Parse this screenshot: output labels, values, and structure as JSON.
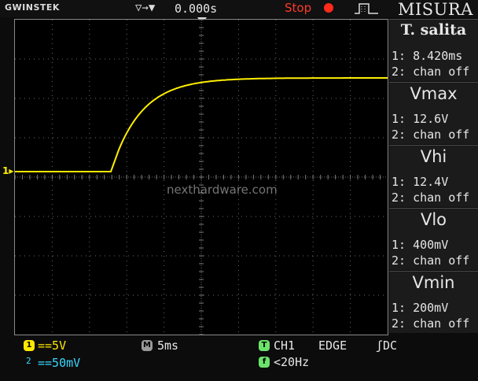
{
  "header": {
    "brand": "GWINSTEK",
    "trigger_glyph": "▽→▼",
    "time_offset": "0.000s",
    "run_status": "Stop",
    "menu_title": "MISURA"
  },
  "screen": {
    "ch1_marker": "1▸",
    "watermark": "nexthardware.com",
    "trace_color": "#ffee00"
  },
  "measurements": [
    {
      "title": "T. salita",
      "ch1": "1: 8.420ms",
      "ch2": "2: chan off"
    },
    {
      "title": "Vmax",
      "ch1": "1: 12.6V",
      "ch2": "2: chan off"
    },
    {
      "title": "Vhi",
      "ch1": "1: 12.4V",
      "ch2": "2: chan off"
    },
    {
      "title": "Vlo",
      "ch1": "1: 400mV",
      "ch2": "2: chan off"
    },
    {
      "title": "Vmin",
      "ch1": "1: 200mV",
      "ch2": "2: chan off"
    }
  ],
  "footer": {
    "ch1_badge": "1",
    "ch1_scale": "==5V",
    "ch2_badge": "2",
    "ch2_scale": "==50mV",
    "timebase_badge": "M",
    "timebase": "5ms",
    "trigger_badge": "T",
    "trigger_source": "CH1",
    "trigger_type": "EDGE",
    "trigger_coupling": "ʃDC",
    "freq_badge": "f",
    "frequency": "<20Hz"
  },
  "colors": {
    "ch1": "#ffe800",
    "ch2": "#39d7ff",
    "stop": "#ff3a2a"
  }
}
